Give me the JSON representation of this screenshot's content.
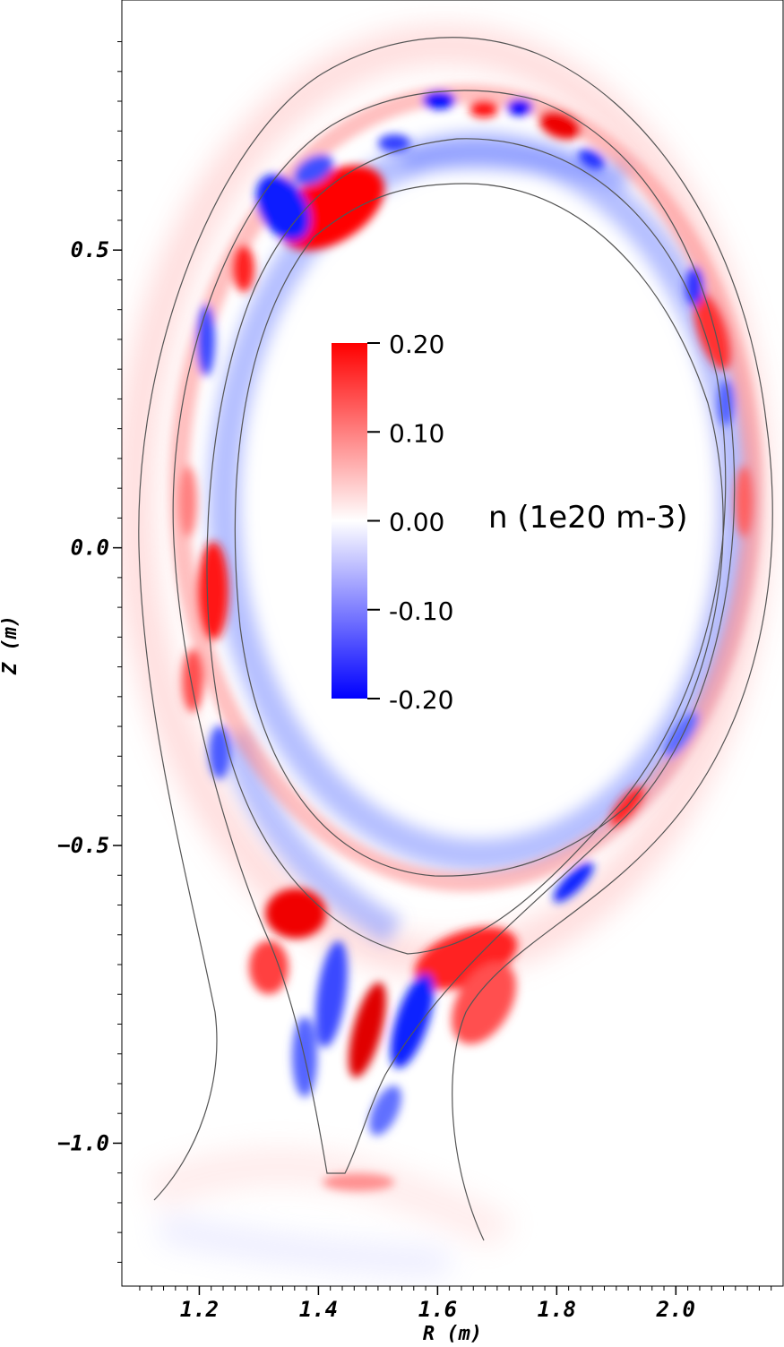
{
  "chart_data": {
    "type": "heatmap",
    "title": "",
    "xlabel": "R (m)",
    "ylabel": "Z (m)",
    "xlim": [
      1.07,
      2.18
    ],
    "ylim": [
      -1.24,
      0.92
    ],
    "x_ticks": [
      {
        "value": 1.2,
        "label": "1.2"
      },
      {
        "value": 1.4,
        "label": "1.4"
      },
      {
        "value": 1.6,
        "label": "1.6"
      },
      {
        "value": 1.8,
        "label": "1.8"
      },
      {
        "value": 2.0,
        "label": "2.0"
      }
    ],
    "y_ticks": [
      {
        "value": 0.5,
        "label": "0.5"
      },
      {
        "value": 0.0,
        "label": "0.0"
      },
      {
        "value": -0.5,
        "label": "−0.5"
      },
      {
        "value": -1.0,
        "label": "−1.0"
      }
    ],
    "colorbar": {
      "title": "n (1e20 m-3)",
      "min": -0.2,
      "max": 0.2,
      "ticks": [
        {
          "value": 0.2,
          "label": "0.20"
        },
        {
          "value": 0.1,
          "label": "0.10"
        },
        {
          "value": 0.0,
          "label": "0.00"
        },
        {
          "value": -0.1,
          "label": "-0.10"
        },
        {
          "value": -0.2,
          "label": "-0.20"
        }
      ],
      "colors": {
        "max": "#ff0000",
        "mid": "#ffffff",
        "min": "#0000ff"
      }
    },
    "field_summary": [
      {
        "region": "upper edge near R 1.3-1.45, Z 0.55",
        "value": 0.2
      },
      {
        "region": "upper crown R 1.55-1.9, Z 0.75",
        "value": -0.15
      },
      {
        "region": "inboard midplane R 1.22, Z -0.1",
        "value": 0.15
      },
      {
        "region": "outboard edge R 2.08, Z 0.1",
        "value": 0.1
      },
      {
        "region": "inner flux band",
        "value": -0.08
      },
      {
        "region": "core",
        "value": 0.0
      },
      {
        "region": "divertor legs R 1.4-1.7, Z -0.7 to -0.95",
        "value": 0.15
      },
      {
        "region": "divertor legs R 1.45-1.6, Z -0.85",
        "value": -0.15
      }
    ]
  }
}
